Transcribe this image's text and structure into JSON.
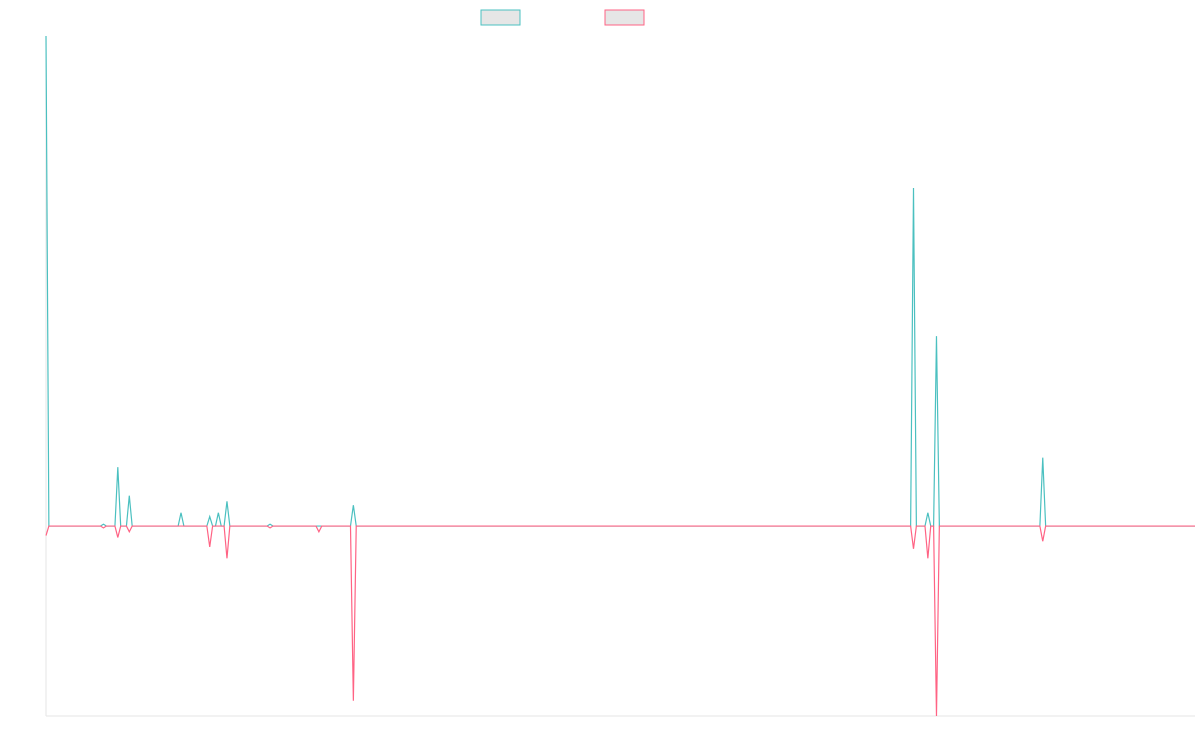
{
  "chart_data": {
    "type": "line",
    "x": [
      0,
      1,
      19,
      20,
      21,
      24,
      25,
      26,
      28,
      29,
      30,
      46,
      47,
      48,
      56,
      57,
      58,
      59,
      60,
      61,
      62,
      63,
      64,
      77,
      78,
      79,
      94,
      95,
      96,
      106,
      107,
      108,
      301,
      302,
      303,
      306,
      307,
      308,
      309,
      310,
      311,
      346,
      347,
      348,
      400
    ],
    "xlim": [
      0,
      400
    ],
    "ylim": [
      -100,
      258
    ],
    "series": [
      {
        "color": "#4bc0c0",
        "values": [
          258,
          0,
          0,
          1,
          0,
          0,
          31,
          0,
          0,
          16,
          0,
          0,
          7,
          0,
          0,
          5,
          0,
          0,
          7,
          0,
          0,
          13,
          0,
          0,
          1,
          0,
          0,
          0,
          0,
          0,
          11,
          0,
          0,
          178,
          0,
          0,
          7,
          0,
          0,
          100,
          0,
          0,
          36,
          0,
          0
        ]
      },
      {
        "color": "#ff6384",
        "values": [
          -5,
          0,
          0,
          -1,
          0,
          0,
          -6,
          0,
          0,
          -3,
          0,
          0,
          0,
          0,
          0,
          -11,
          0,
          0,
          0,
          0,
          0,
          -17,
          0,
          0,
          -1,
          0,
          0,
          -3,
          0,
          0,
          -92,
          0,
          0,
          -12,
          0,
          0,
          -17,
          0,
          0,
          -100,
          0,
          0,
          -8,
          0,
          0
        ]
      }
    ]
  }
}
